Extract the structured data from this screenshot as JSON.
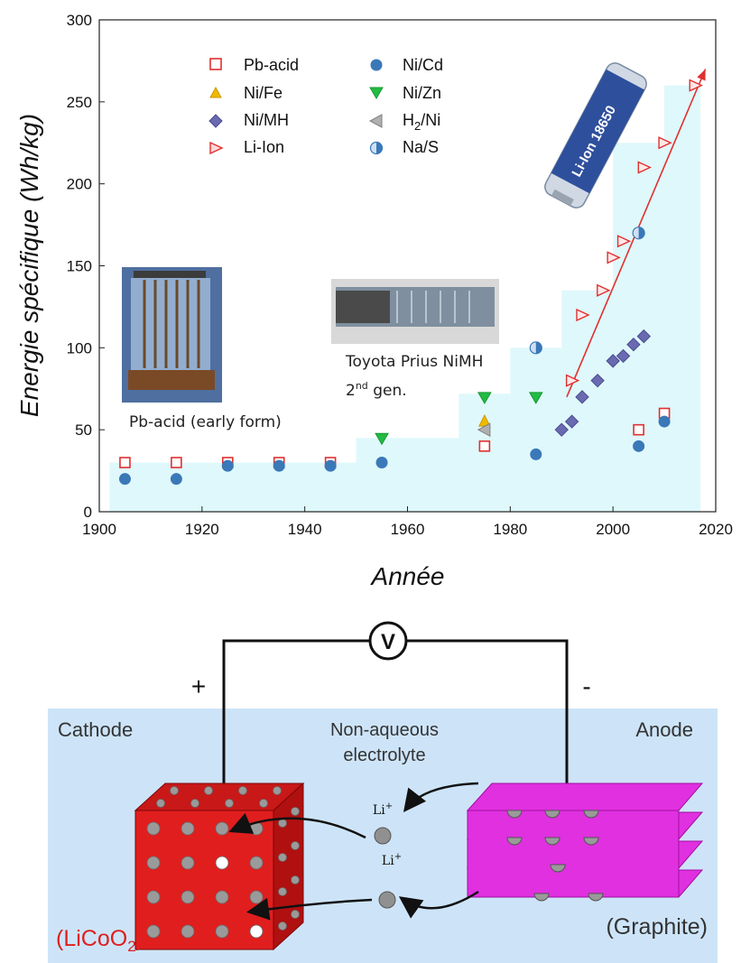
{
  "chart_data": {
    "type": "scatter",
    "xlabel": "Année",
    "ylabel": "Energie spécifique (Wh/kg)",
    "xlim": [
      1900,
      2020
    ],
    "ylim": [
      0,
      300
    ],
    "x_ticks": [
      "1900",
      "1920",
      "1940",
      "1960",
      "1980",
      "2000",
      "2020"
    ],
    "y_ticks": [
      "0",
      "50",
      "100",
      "150",
      "200",
      "250",
      "300"
    ],
    "grid": false,
    "legend_position": "top-left",
    "series": [
      {
        "name": "Pb-acid",
        "marker": "square-open",
        "color": "#e03030",
        "x": [
          1905,
          1915,
          1925,
          1935,
          1945,
          1975,
          2005,
          2010
        ],
        "y": [
          30,
          30,
          30,
          30,
          30,
          40,
          50,
          60
        ]
      },
      {
        "name": "Ni/Cd",
        "marker": "circle",
        "color": "#3a78b8",
        "x": [
          1905,
          1915,
          1925,
          1935,
          1945,
          1955,
          1985,
          2005,
          2010
        ],
        "y": [
          20,
          20,
          28,
          28,
          28,
          30,
          35,
          40,
          55
        ]
      },
      {
        "name": "Ni/Fe",
        "marker": "triangle-up",
        "color": "#f2b800",
        "x": [
          1975
        ],
        "y": [
          55
        ]
      },
      {
        "name": "Ni/Zn",
        "marker": "triangle-down",
        "color": "#22bb44",
        "x": [
          1955,
          1975,
          1985
        ],
        "y": [
          45,
          70,
          70
        ]
      },
      {
        "name": "Ni/MH",
        "marker": "diamond",
        "color": "#6a6ab0",
        "x": [
          1990,
          1992,
          1994,
          1997,
          2000,
          2002,
          2004,
          2006
        ],
        "y": [
          50,
          55,
          70,
          80,
          92,
          95,
          102,
          107
        ]
      },
      {
        "name": "H2/Ni",
        "marker": "triangle-left",
        "color": "#8a8a8a",
        "x": [
          1975
        ],
        "y": [
          50
        ]
      },
      {
        "name": "Li-Ion",
        "marker": "triangle-right-open",
        "color": "#e03030",
        "x": [
          1992,
          1994,
          1998,
          2000,
          2002,
          2006,
          2010,
          2016
        ],
        "y": [
          80,
          120,
          135,
          155,
          165,
          210,
          225,
          260
        ]
      },
      {
        "name": "Na/S",
        "marker": "half-circle",
        "color": "#3a78b8",
        "x": [
          1985,
          2005
        ],
        "y": [
          100,
          170
        ]
      }
    ],
    "background_steps": [
      {
        "x0": 1902,
        "x1": 1950,
        "y": 30
      },
      {
        "x0": 1950,
        "x1": 1970,
        "y": 45
      },
      {
        "x0": 1970,
        "x1": 1980,
        "y": 72
      },
      {
        "x0": 1980,
        "x1": 1990,
        "y": 100
      },
      {
        "x0": 1990,
        "x1": 2000,
        "y": 135
      },
      {
        "x0": 2000,
        "x1": 2010,
        "y": 225
      },
      {
        "x0": 2010,
        "x1": 2017,
        "y": 260
      }
    ],
    "trend_line": {
      "x": [
        1991,
        2018
      ],
      "y": [
        70,
        270
      ],
      "color": "#e03030"
    }
  },
  "annotations": {
    "pb_acid": "Pb-acid (early form)",
    "prius_line1": "Toyota Prius NiMH",
    "prius_gen_num": "2",
    "prius_gen_sup": "nd",
    "prius_gen_rest": " gen.",
    "cell_brand": "Li-Ion 18650"
  },
  "legend": {
    "pb_acid": "Pb-acid",
    "ni_cd": "Ni/Cd",
    "ni_fe": "Ni/Fe",
    "ni_zn": "Ni/Zn",
    "ni_mh": "Ni/MH",
    "h2_ni_main": "H",
    "h2_ni_sub": "2",
    "h2_ni_rest": "/Ni",
    "li_ion": "Li-Ion",
    "na_s": "Na/S"
  },
  "diagram": {
    "voltmeter": "V",
    "plus": "+",
    "minus": "-",
    "cathode": "Cathode",
    "anode": "Anode",
    "electrolyte_1": "Non-aqueous",
    "electrolyte_2": "electrolyte",
    "ion_label": "Li",
    "ion_sup": "+",
    "cathode_formula_a": "(LiCoO",
    "cathode_formula_sub": "2",
    "cathode_formula_b": ")",
    "anode_material": "(Graphite)"
  }
}
